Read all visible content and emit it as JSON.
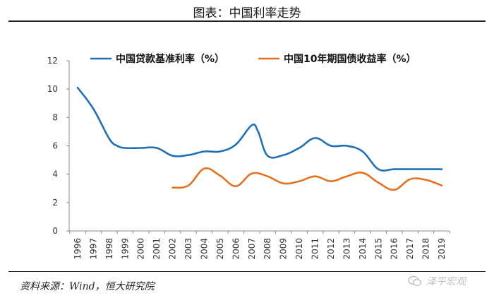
{
  "header": {
    "title": "图表：中国利率走势"
  },
  "footer": {
    "source": "资料来源：Wind，恒大研究院",
    "watermark": "泽平宏观",
    "watermark_icon": "wechat-icon"
  },
  "chart_data": {
    "type": "line",
    "title": "图表：中国利率走势",
    "xlabel": "",
    "ylabel": "",
    "ylim": [
      0,
      12
    ],
    "yticks": [
      "0",
      "2",
      "4",
      "6",
      "8",
      "10",
      "12"
    ],
    "categories": [
      "1996",
      "1997",
      "1998",
      "1999",
      "2000",
      "2001",
      "2002",
      "2003",
      "2004",
      "2005",
      "2006",
      "2007",
      "2008",
      "2009",
      "2010",
      "2011",
      "2012",
      "2013",
      "2014",
      "2015",
      "2016",
      "2017",
      "2018",
      "2019"
    ],
    "legend_position": "top",
    "grid": false,
    "series": [
      {
        "name": "中国贷款基准利率（%）",
        "color": "#1f6fb2",
        "x": [
          1996,
          1997,
          1998,
          1998.5,
          1999,
          2000,
          2001,
          2002,
          2003,
          2004,
          2005,
          2006,
          2007,
          2007.4,
          2008,
          2009,
          2010,
          2011,
          2012,
          2013,
          2014,
          2015,
          2016,
          2017,
          2018,
          2019
        ],
        "values": [
          10.1,
          8.6,
          6.5,
          6.0,
          5.85,
          5.85,
          5.85,
          5.3,
          5.35,
          5.6,
          5.6,
          6.1,
          7.45,
          7.0,
          5.3,
          5.35,
          5.85,
          6.55,
          6.0,
          6.0,
          5.6,
          4.35,
          4.35,
          4.35,
          4.35,
          4.35
        ]
      },
      {
        "name": "中国10年期国债收益率（%）",
        "color": "#e37222",
        "x": [
          2002,
          2003,
          2004,
          2005,
          2006,
          2007,
          2008,
          2009,
          2010,
          2011,
          2012,
          2013,
          2014,
          2015,
          2016,
          2017,
          2018,
          2019
        ],
        "values": [
          3.05,
          3.2,
          4.4,
          3.9,
          3.15,
          4.05,
          3.85,
          3.35,
          3.5,
          3.85,
          3.5,
          3.85,
          4.1,
          3.4,
          2.9,
          3.65,
          3.6,
          3.2
        ]
      }
    ]
  }
}
